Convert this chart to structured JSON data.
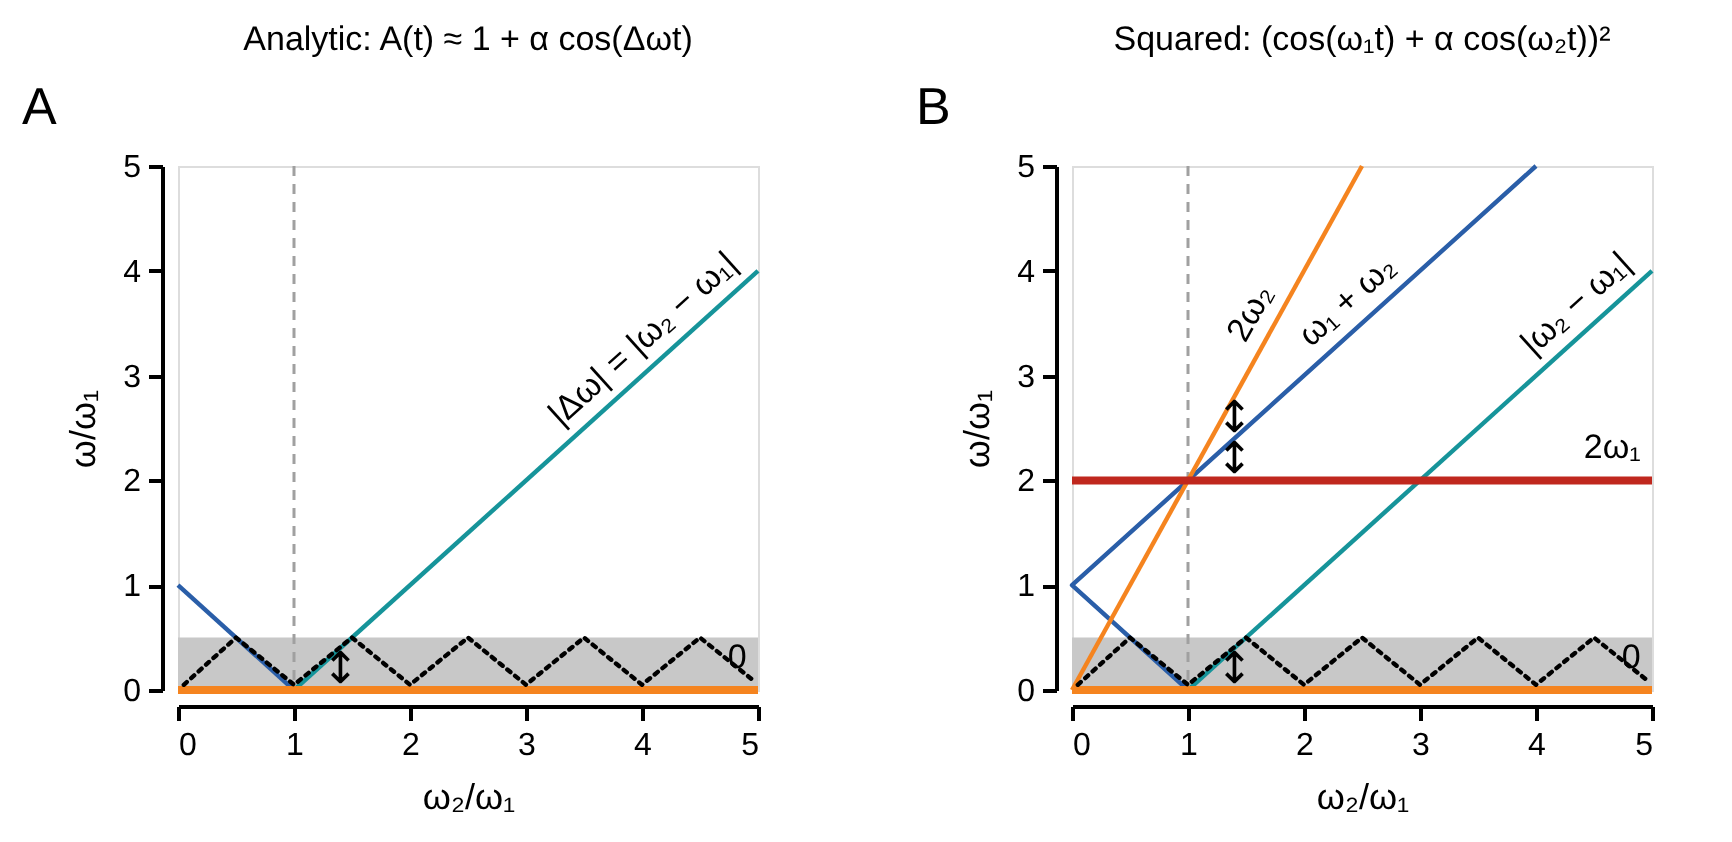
{
  "chart_data": [
    {
      "type": "line",
      "title": "Analytic: A(t) ≈ 1 + α cos(Δωt)",
      "xlabel": "ω₂/ω₁",
      "ylabel": "ω/ω₁",
      "xlim": [
        0,
        5
      ],
      "ylim": [
        0,
        5
      ],
      "xticks": [
        0,
        1,
        2,
        3,
        4,
        5
      ],
      "yticks": [
        0,
        1,
        2,
        3,
        4,
        5
      ],
      "series": [
        {
          "color": "#2a5ea8",
          "x": [
            0,
            1
          ],
          "values": [
            1,
            0
          ]
        },
        {
          "name": "|Δω| = |ω₂ − ω₁|",
          "color": "#16949a",
          "x": [
            1,
            5
          ],
          "values": [
            0,
            4
          ]
        },
        {
          "name": "0",
          "color": "#f5841f",
          "x": [
            0,
            5
          ],
          "values": [
            0,
            0
          ]
        },
        {
          "color": "#000000",
          "line_style": "dotted",
          "x": [
            0.05,
            0.5,
            1,
            1.5,
            2,
            2.5,
            3,
            3.5,
            4,
            4.5,
            4.95
          ],
          "values": [
            0.05,
            0.5,
            0.05,
            0.5,
            0.05,
            0.5,
            0.05,
            0.5,
            0.05,
            0.5,
            0.1
          ]
        }
      ],
      "ref_lines": [
        {
          "axis": "x",
          "value": 1,
          "color": "#a0a0a0",
          "line_style": "dashed"
        }
      ],
      "bands": [
        {
          "axis": "y",
          "from": 0,
          "to": 0.5,
          "color": "#c8c8c8"
        }
      ],
      "annotations": [
        "A",
        "↕"
      ]
    },
    {
      "type": "line",
      "title": "Squared: (cos(ω₁t) + α cos(ω₂t))²",
      "xlabel": "ω₂/ω₁",
      "ylabel": "ω/ω₁",
      "xlim": [
        0,
        5
      ],
      "ylim": [
        0,
        5
      ],
      "xticks": [
        0,
        1,
        2,
        3,
        4,
        5
      ],
      "yticks": [
        0,
        1,
        2,
        3,
        4,
        5
      ],
      "series": [
        {
          "name": "ω₁ + ω₂",
          "color": "#2a5ea8",
          "x": [
            1,
            0,
            4
          ],
          "values": [
            0,
            1,
            5
          ]
        },
        {
          "name": "|ω₂ − ω₁|",
          "color": "#16949a",
          "x": [
            1,
            5
          ],
          "values": [
            0,
            4
          ]
        },
        {
          "name": "2ω₂",
          "color": "#f5841f",
          "x": [
            0,
            2.5
          ],
          "values": [
            0,
            5
          ]
        },
        {
          "name": "2ω₁",
          "color": "#c0281e",
          "x": [
            0,
            5
          ],
          "values": [
            2,
            2
          ]
        },
        {
          "name": "0",
          "color": "#f5841f",
          "x": [
            0,
            5
          ],
          "values": [
            0,
            0
          ]
        },
        {
          "color": "#000000",
          "line_style": "dotted",
          "x": [
            0.05,
            0.5,
            1,
            1.5,
            2,
            2.5,
            3,
            3.5,
            4,
            4.5,
            4.95
          ],
          "values": [
            0.05,
            0.5,
            0.05,
            0.5,
            0.05,
            0.5,
            0.05,
            0.5,
            0.05,
            0.5,
            0.1
          ]
        }
      ],
      "ref_lines": [
        {
          "axis": "x",
          "value": 1,
          "color": "#a0a0a0",
          "line_style": "dashed"
        }
      ],
      "bands": [
        {
          "axis": "y",
          "from": 0,
          "to": 0.5,
          "color": "#c8c8c8"
        }
      ],
      "annotations": [
        "B",
        "↕",
        "↕",
        "↕"
      ]
    }
  ]
}
